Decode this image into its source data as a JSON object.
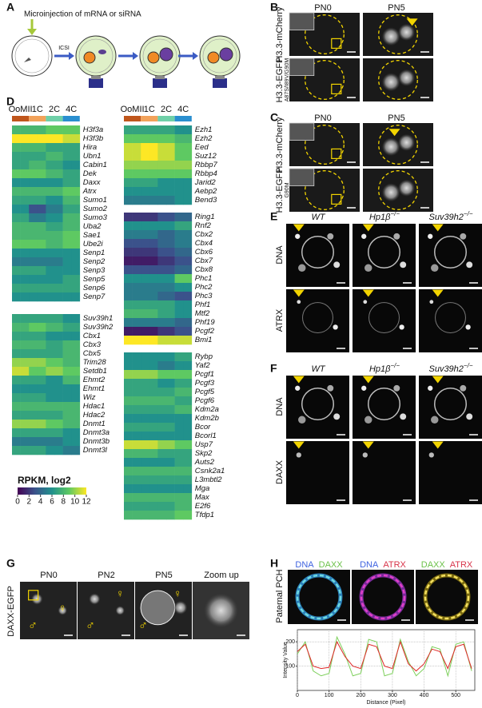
{
  "panel_labels": [
    "A",
    "B",
    "C",
    "D",
    "E",
    "F",
    "G",
    "H"
  ],
  "A": {
    "text": "Microinjection of mRNA or siRNA",
    "icsi": "ICSI"
  },
  "B": {
    "columns": [
      "PN0",
      "PN5"
    ],
    "rows": [
      {
        "label": "H3.3-mCherry"
      },
      {
        "label": "H3.3-EGFP",
        "sub": "A87S/I89V/G90M"
      }
    ]
  },
  "C": {
    "columns": [
      "PN0",
      "PN5"
    ],
    "rows": [
      {
        "label": "H3.3-mCherry"
      },
      {
        "label": "H3.3-EGFP",
        "sub": "G90M"
      }
    ]
  },
  "D": {
    "stages": [
      "OoMII",
      "1C",
      "2C",
      "4C"
    ],
    "stage_colors": [
      "#c0561c",
      "#f2a25a",
      "#6fd0a8",
      "#2a8fd0"
    ],
    "colorbar": {
      "title": "RPKM, log2",
      "lim": [
        0,
        12
      ],
      "ticks": [
        0,
        2,
        4,
        6,
        8,
        10,
        12
      ]
    },
    "blocks": [
      {
        "genes": [
          "H3f3a",
          "H3f3b",
          "Hira",
          "Ubn1",
          "Cabin1",
          "Dek",
          "Daxx",
          "Atrx",
          "Sumo1",
          "Sumo2",
          "Sumo3",
          "Uba2",
          "Sae1",
          "Ube2i",
          "Senp1",
          "Senp2",
          "Senp3",
          "Senp5",
          "Senp6",
          "Senp7"
        ],
        "values": [
          [
            8,
            8,
            8,
            8,
            9,
            9,
            9,
            9
          ],
          [
            12,
            12,
            12,
            12,
            12,
            12,
            11,
            11
          ],
          [
            8,
            8,
            8,
            8,
            7,
            7,
            7,
            7
          ],
          [
            7,
            7,
            7,
            7,
            8,
            8,
            7,
            7
          ],
          [
            7,
            7,
            8,
            8,
            7,
            7,
            6,
            6
          ],
          [
            9,
            9,
            9,
            9,
            8,
            8,
            7,
            7
          ],
          [
            6,
            6,
            6,
            6,
            6,
            6,
            7,
            7
          ],
          [
            8,
            8,
            8,
            8,
            8,
            8,
            9,
            9
          ],
          [
            7,
            7,
            7,
            7,
            6,
            6,
            8,
            8
          ],
          [
            6,
            6,
            3,
            3,
            5,
            5,
            7,
            7
          ],
          [
            7,
            7,
            5,
            5,
            6,
            6,
            8,
            8
          ],
          [
            8,
            8,
            8,
            8,
            7,
            7,
            8,
            8
          ],
          [
            8,
            8,
            8,
            8,
            8,
            8,
            9,
            9
          ],
          [
            9,
            9,
            9,
            9,
            8,
            8,
            9,
            9
          ],
          [
            6,
            6,
            6,
            6,
            6,
            6,
            6,
            6
          ],
          [
            5,
            5,
            5,
            5,
            5,
            5,
            6,
            6
          ],
          [
            7,
            7,
            7,
            7,
            6,
            6,
            6,
            6
          ],
          [
            6,
            6,
            6,
            6,
            6,
            6,
            7,
            7
          ],
          [
            7,
            7,
            7,
            7,
            7,
            7,
            7,
            7
          ],
          [
            6,
            6,
            6,
            6,
            6,
            6,
            6,
            6
          ]
        ]
      },
      {
        "genes": [
          "Suv39h1",
          "Suv39h2",
          "Cbx1",
          "Cbx3",
          "Cbx5",
          "Trim28",
          "Setdb1",
          "Ehmt2",
          "Ehmt1",
          "Wiz",
          "Hdac1",
          "Hdac2",
          "Dnmt1",
          "Dnmt3a",
          "Dnmt3b",
          "Dnmt3l"
        ],
        "values": [
          [
            7,
            7,
            7,
            7,
            7,
            7,
            6,
            6
          ],
          [
            8,
            8,
            9,
            9,
            8,
            8,
            7,
            7
          ],
          [
            7,
            7,
            7,
            7,
            6,
            6,
            6,
            6
          ],
          [
            8,
            8,
            8,
            8,
            7,
            7,
            8,
            8
          ],
          [
            7,
            7,
            7,
            7,
            7,
            7,
            8,
            8
          ],
          [
            10,
            10,
            10,
            10,
            9,
            9,
            8,
            8
          ],
          [
            11,
            11,
            9,
            9,
            10,
            10,
            9,
            9
          ],
          [
            7,
            7,
            7,
            7,
            6,
            6,
            8,
            8
          ],
          [
            6,
            6,
            6,
            6,
            6,
            6,
            6,
            6
          ],
          [
            7,
            7,
            7,
            7,
            6,
            6,
            6,
            6
          ],
          [
            8,
            8,
            8,
            8,
            8,
            8,
            8,
            8
          ],
          [
            7,
            7,
            7,
            7,
            7,
            7,
            8,
            8
          ],
          [
            10,
            10,
            10,
            10,
            9,
            9,
            8,
            8
          ],
          [
            7,
            7,
            7,
            7,
            7,
            7,
            6,
            6
          ],
          [
            5,
            5,
            5,
            5,
            5,
            5,
            6,
            6
          ],
          [
            7,
            7,
            7,
            7,
            6,
            6,
            5,
            5
          ]
        ]
      },
      {
        "genes": [
          "Ezh1",
          "Ezh2",
          "Eed",
          "Suz12",
          "Rbbp7",
          "Rbbp4",
          "Jarid2",
          "Aebp2",
          "Bend3"
        ],
        "values": [
          [
            7,
            7,
            7,
            7,
            7,
            7,
            6,
            6
          ],
          [
            9,
            9,
            9,
            9,
            9,
            9,
            8,
            8
          ],
          [
            11,
            11,
            12,
            12,
            11,
            11,
            9,
            9
          ],
          [
            11,
            11,
            12,
            12,
            11,
            11,
            9,
            9
          ],
          [
            10,
            10,
            10,
            10,
            10,
            10,
            10,
            10
          ],
          [
            9,
            9,
            9,
            9,
            9,
            9,
            9,
            9
          ],
          [
            7,
            7,
            7,
            7,
            6,
            6,
            6,
            6
          ],
          [
            6,
            6,
            6,
            6,
            6,
            6,
            6,
            6
          ],
          [
            5,
            5,
            5,
            5,
            5,
            5,
            6,
            6
          ]
        ]
      },
      {
        "genes": [
          "Ring1",
          "Rnf2",
          "Cbx2",
          "Cbx4",
          "Cbx6",
          "Cbx7",
          "Cbx8",
          "Phc1",
          "Phc2",
          "Phc3",
          "Phf1",
          "Mtf2",
          "Phf19",
          "Pcgf2",
          "Bmi1"
        ],
        "values": [
          [
            2,
            2,
            2,
            2,
            3,
            3,
            4,
            4
          ],
          [
            6,
            6,
            6,
            6,
            6,
            6,
            7,
            7
          ],
          [
            5,
            5,
            5,
            5,
            4,
            4,
            5,
            5
          ],
          [
            3,
            3,
            3,
            3,
            4,
            4,
            5,
            5
          ],
          [
            2,
            2,
            2,
            2,
            3,
            3,
            4,
            4
          ],
          [
            1,
            1,
            1,
            1,
            2,
            2,
            3,
            3
          ],
          [
            3,
            3,
            3,
            3,
            3,
            3,
            4,
            4
          ],
          [
            6,
            6,
            6,
            6,
            6,
            6,
            9,
            9
          ],
          [
            5,
            5,
            5,
            5,
            5,
            5,
            6,
            6
          ],
          [
            5,
            5,
            5,
            5,
            4,
            4,
            3,
            3
          ],
          [
            7,
            7,
            7,
            7,
            7,
            7,
            6,
            6
          ],
          [
            8,
            8,
            8,
            8,
            7,
            7,
            6,
            6
          ],
          [
            5,
            5,
            5,
            5,
            5,
            5,
            4,
            4
          ],
          [
            1,
            1,
            1,
            1,
            2,
            2,
            3,
            3
          ],
          [
            12,
            12,
            12,
            12,
            11,
            11,
            11,
            11
          ]
        ]
      },
      {
        "genes": [
          "Rybp",
          "Yaf2",
          "Pcgf1",
          "Pcgf3",
          "Pcgf5",
          "Pcgf6",
          "Kdm2a",
          "Kdm2b",
          "Bcor",
          "Bcorl1",
          "Usp7",
          "Skp2",
          "Auts2",
          "Csnk2a1",
          "L3mbtl2",
          "Mga",
          "Max",
          "E2f6",
          "Tfdp1"
        ],
        "values": [
          [
            6,
            6,
            6,
            6,
            6,
            6,
            7,
            7
          ],
          [
            6,
            6,
            6,
            6,
            5,
            5,
            6,
            6
          ],
          [
            10,
            10,
            10,
            10,
            9,
            9,
            9,
            9
          ],
          [
            7,
            7,
            7,
            7,
            6,
            6,
            7,
            7
          ],
          [
            7,
            7,
            7,
            7,
            7,
            7,
            8,
            8
          ],
          [
            8,
            8,
            8,
            8,
            8,
            8,
            7,
            7
          ],
          [
            7,
            7,
            7,
            7,
            7,
            7,
            8,
            8
          ],
          [
            6,
            6,
            6,
            6,
            6,
            6,
            6,
            6
          ],
          [
            7,
            7,
            7,
            7,
            7,
            7,
            6,
            6
          ],
          [
            6,
            6,
            6,
            6,
            6,
            6,
            6,
            6
          ],
          [
            11,
            11,
            11,
            11,
            10,
            10,
            9,
            9
          ],
          [
            8,
            8,
            8,
            8,
            7,
            7,
            7,
            7
          ],
          [
            6,
            6,
            6,
            6,
            6,
            6,
            7,
            7
          ],
          [
            8,
            8,
            8,
            8,
            8,
            8,
            8,
            8
          ],
          [
            7,
            7,
            7,
            7,
            7,
            7,
            7,
            7
          ],
          [
            6,
            6,
            6,
            6,
            6,
            6,
            6,
            6
          ],
          [
            8,
            8,
            8,
            8,
            8,
            8,
            8,
            8
          ],
          [
            7,
            7,
            7,
            7,
            7,
            7,
            8,
            8
          ],
          [
            8,
            8,
            8,
            8,
            8,
            8,
            9,
            9
          ]
        ]
      }
    ]
  },
  "E": {
    "columns": [
      {
        "name": "WT"
      },
      {
        "name": "Hp1β",
        "sup": "−/−"
      },
      {
        "name": "Suv39h2",
        "sup": "−/−"
      }
    ],
    "rows": [
      "DNA",
      "ATRX"
    ]
  },
  "F": {
    "columns": [
      {
        "name": "WT"
      },
      {
        "name": "Hp1β",
        "sup": "−/−"
      },
      {
        "name": "Suv39h2",
        "sup": "−/−"
      }
    ],
    "rows": [
      "DNA",
      "DAXX"
    ]
  },
  "G": {
    "row_label": "DAXX-EGFP",
    "columns": [
      "PN0",
      "PN2",
      "PN5",
      "Zoom up"
    ],
    "male": "♂",
    "female": "♀"
  },
  "H": {
    "row_label": "Paternal PCH",
    "merges": [
      [
        {
          "text": "DNA",
          "color": "#3f63e0"
        },
        {
          "text": "DAXX",
          "color": "#6cc24a"
        }
      ],
      [
        {
          "text": "DNA",
          "color": "#3f63e0"
        },
        {
          "text": "ATRX",
          "color": "#d8344a"
        }
      ],
      [
        {
          "text": "DAXX",
          "color": "#6cc24a"
        },
        {
          "text": "ATRX",
          "color": "#d8344a"
        }
      ]
    ],
    "chart": {
      "type": "line",
      "x_label": "Distance (Pixel)",
      "y_label": "Intensity Value",
      "x": [
        0,
        25,
        50,
        75,
        100,
        125,
        150,
        175,
        200,
        225,
        250,
        275,
        300,
        325,
        350,
        375,
        400,
        425,
        450,
        475,
        500,
        525,
        550
      ],
      "series": [
        {
          "color": "#7ccf5a",
          "values": [
            150,
            200,
            80,
            60,
            70,
            220,
            150,
            60,
            70,
            210,
            200,
            60,
            70,
            210,
            120,
            60,
            90,
            180,
            170,
            60,
            190,
            200,
            80
          ]
        },
        {
          "color": "#e02828",
          "values": [
            160,
            190,
            100,
            90,
            95,
            200,
            140,
            100,
            90,
            190,
            180,
            100,
            90,
            200,
            110,
            80,
            110,
            170,
            160,
            90,
            180,
            190,
            90
          ]
        }
      ],
      "xlim": [
        0,
        560
      ],
      "ylim": [
        0,
        250
      ],
      "xticks": [
        0,
        100,
        200,
        300,
        400,
        500
      ],
      "yticks": [
        100,
        200
      ],
      "grid": true
    }
  }
}
